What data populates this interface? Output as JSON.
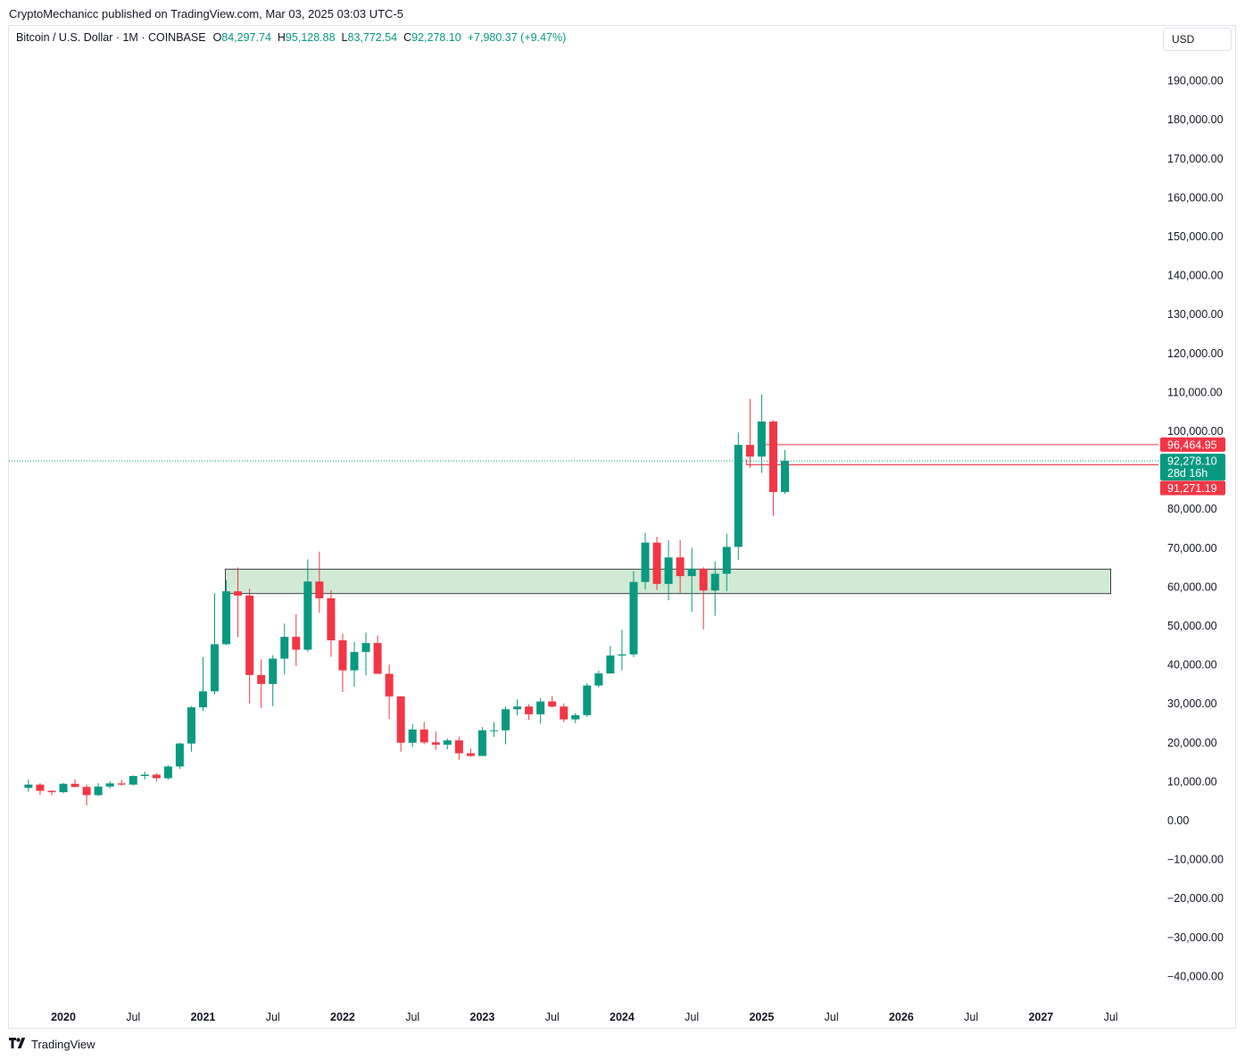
{
  "publisher_line": "CryptoMechanicc published on TradingView.com, Mar 03, 2025 03:03 UTC-5",
  "brand": {
    "logo_icon": "tradingview-logo-icon",
    "name": "TradingView"
  },
  "legend": {
    "symbol": "Bitcoin / U.S. Dollar · 1M · COINBASE",
    "open_key": "O",
    "open": "84,297.74",
    "high_key": "H",
    "high": "95,128.88",
    "low_key": "L",
    "low": "83,772.54",
    "close_key": "C",
    "close": "92,278.10",
    "change": "+7,980.37 (+9.47%)"
  },
  "currency": "USD",
  "colors": {
    "up": "#089981",
    "down": "#f23645",
    "zone_fill": "#d1ead3",
    "grid_text": "#131722"
  },
  "chart_data": {
    "type": "candlestick",
    "interval": "1M",
    "y_axis": {
      "min": -40000,
      "max": 190000,
      "step": 10000,
      "ticks": [
        "190,000.00",
        "180,000.00",
        "170,000.00",
        "160,000.00",
        "150,000.00",
        "140,000.00",
        "130,000.00",
        "120,000.00",
        "110,000.00",
        "100,000.00",
        "80,000.00",
        "70,000.00",
        "60,000.00",
        "50,000.00",
        "40,000.00",
        "30,000.00",
        "20,000.00",
        "10,000.00",
        "0.00",
        "−10,000.00",
        "−20,000.00",
        "−30,000.00",
        "−40,000.00"
      ],
      "tick_values": [
        190000,
        180000,
        170000,
        160000,
        150000,
        140000,
        130000,
        120000,
        110000,
        100000,
        80000,
        70000,
        60000,
        50000,
        40000,
        30000,
        20000,
        10000,
        0,
        -10000,
        -20000,
        -30000,
        -40000
      ]
    },
    "x_axis": {
      "labels": [
        {
          "label": "2020",
          "month": "2020-01",
          "bold": true
        },
        {
          "label": "Jul",
          "month": "2020-07",
          "bold": false
        },
        {
          "label": "2021",
          "month": "2021-01",
          "bold": true
        },
        {
          "label": "Jul",
          "month": "2021-07",
          "bold": false
        },
        {
          "label": "2022",
          "month": "2022-01",
          "bold": true
        },
        {
          "label": "Jul",
          "month": "2022-07",
          "bold": false
        },
        {
          "label": "2023",
          "month": "2023-01",
          "bold": true
        },
        {
          "label": "Jul",
          "month": "2023-07",
          "bold": false
        },
        {
          "label": "2024",
          "month": "2024-01",
          "bold": true
        },
        {
          "label": "Jul",
          "month": "2024-07",
          "bold": false
        },
        {
          "label": "2025",
          "month": "2025-01",
          "bold": true
        },
        {
          "label": "Jul",
          "month": "2025-07",
          "bold": false
        },
        {
          "label": "2026",
          "month": "2026-01",
          "bold": true
        },
        {
          "label": "Jul",
          "month": "2026-07",
          "bold": false
        },
        {
          "label": "2027",
          "month": "2027-01",
          "bold": true
        },
        {
          "label": "Jul",
          "month": "2027-07",
          "bold": false
        }
      ]
    },
    "candles": [
      {
        "t": "2019-10",
        "o": 8300,
        "h": 10400,
        "l": 7300,
        "c": 9150
      },
      {
        "t": "2019-11",
        "o": 9150,
        "h": 9500,
        "l": 6500,
        "c": 7550
      },
      {
        "t": "2019-12",
        "o": 7550,
        "h": 7700,
        "l": 6400,
        "c": 7200
      },
      {
        "t": "2020-01",
        "o": 7200,
        "h": 9600,
        "l": 6900,
        "c": 9350
      },
      {
        "t": "2020-02",
        "o": 9350,
        "h": 10500,
        "l": 8500,
        "c": 8550
      },
      {
        "t": "2020-03",
        "o": 8550,
        "h": 9200,
        "l": 3800,
        "c": 6450
      },
      {
        "t": "2020-04",
        "o": 6450,
        "h": 9500,
        "l": 6200,
        "c": 8650
      },
      {
        "t": "2020-05",
        "o": 8650,
        "h": 10100,
        "l": 8100,
        "c": 9450
      },
      {
        "t": "2020-06",
        "o": 9450,
        "h": 10400,
        "l": 8900,
        "c": 9150
      },
      {
        "t": "2020-07",
        "o": 9150,
        "h": 11500,
        "l": 8900,
        "c": 11350
      },
      {
        "t": "2020-08",
        "o": 11350,
        "h": 12500,
        "l": 10500,
        "c": 11700
      },
      {
        "t": "2020-09",
        "o": 11700,
        "h": 12100,
        "l": 9900,
        "c": 10800
      },
      {
        "t": "2020-10",
        "o": 10800,
        "h": 14100,
        "l": 10400,
        "c": 13800
      },
      {
        "t": "2020-11",
        "o": 13800,
        "h": 19900,
        "l": 13200,
        "c": 19700
      },
      {
        "t": "2020-12",
        "o": 19700,
        "h": 29300,
        "l": 17600,
        "c": 29000
      },
      {
        "t": "2021-01",
        "o": 29000,
        "h": 41900,
        "l": 28100,
        "c": 33100
      },
      {
        "t": "2021-02",
        "o": 33100,
        "h": 58300,
        "l": 32300,
        "c": 45200
      },
      {
        "t": "2021-03",
        "o": 45200,
        "h": 61700,
        "l": 45000,
        "c": 58800
      },
      {
        "t": "2021-04",
        "o": 58800,
        "h": 64900,
        "l": 47000,
        "c": 57700
      },
      {
        "t": "2021-05",
        "o": 57700,
        "h": 59500,
        "l": 30000,
        "c": 37300
      },
      {
        "t": "2021-06",
        "o": 37300,
        "h": 41300,
        "l": 28800,
        "c": 35000
      },
      {
        "t": "2021-07",
        "o": 35000,
        "h": 42400,
        "l": 29300,
        "c": 41500
      },
      {
        "t": "2021-08",
        "o": 41500,
        "h": 50500,
        "l": 37400,
        "c": 47100
      },
      {
        "t": "2021-09",
        "o": 47100,
        "h": 52900,
        "l": 39600,
        "c": 43800
      },
      {
        "t": "2021-10",
        "o": 43800,
        "h": 67000,
        "l": 43300,
        "c": 61300
      },
      {
        "t": "2021-11",
        "o": 61300,
        "h": 69000,
        "l": 53300,
        "c": 57000
      },
      {
        "t": "2021-12",
        "o": 57000,
        "h": 59100,
        "l": 42000,
        "c": 46200
      },
      {
        "t": "2022-01",
        "o": 46200,
        "h": 47900,
        "l": 32900,
        "c": 38500
      },
      {
        "t": "2022-02",
        "o": 38500,
        "h": 45800,
        "l": 34300,
        "c": 43200
      },
      {
        "t": "2022-03",
        "o": 43200,
        "h": 48200,
        "l": 37200,
        "c": 45500
      },
      {
        "t": "2022-04",
        "o": 45500,
        "h": 47400,
        "l": 37700,
        "c": 37600
      },
      {
        "t": "2022-05",
        "o": 37600,
        "h": 40000,
        "l": 26000,
        "c": 31800
      },
      {
        "t": "2022-06",
        "o": 31800,
        "h": 31900,
        "l": 17600,
        "c": 19900
      },
      {
        "t": "2022-07",
        "o": 19900,
        "h": 24700,
        "l": 18800,
        "c": 23300
      },
      {
        "t": "2022-08",
        "o": 23300,
        "h": 25200,
        "l": 19500,
        "c": 20000
      },
      {
        "t": "2022-09",
        "o": 20000,
        "h": 22800,
        "l": 18100,
        "c": 19400
      },
      {
        "t": "2022-10",
        "o": 19400,
        "h": 21000,
        "l": 18200,
        "c": 20500
      },
      {
        "t": "2022-11",
        "o": 20500,
        "h": 21400,
        "l": 15500,
        "c": 17200
      },
      {
        "t": "2022-12",
        "o": 17200,
        "h": 18400,
        "l": 16300,
        "c": 16500
      },
      {
        "t": "2023-01",
        "o": 16500,
        "h": 23900,
        "l": 16500,
        "c": 23100
      },
      {
        "t": "2023-02",
        "o": 23100,
        "h": 25200,
        "l": 21400,
        "c": 23100
      },
      {
        "t": "2023-03",
        "o": 23100,
        "h": 29200,
        "l": 19500,
        "c": 28500
      },
      {
        "t": "2023-04",
        "o": 28500,
        "h": 31000,
        "l": 26900,
        "c": 29200
      },
      {
        "t": "2023-05",
        "o": 29200,
        "h": 29800,
        "l": 25800,
        "c": 27200
      },
      {
        "t": "2023-06",
        "o": 27200,
        "h": 31400,
        "l": 24800,
        "c": 30500
      },
      {
        "t": "2023-07",
        "o": 30500,
        "h": 31800,
        "l": 28900,
        "c": 29200
      },
      {
        "t": "2023-08",
        "o": 29200,
        "h": 30000,
        "l": 25200,
        "c": 25900
      },
      {
        "t": "2023-09",
        "o": 25900,
        "h": 27500,
        "l": 24900,
        "c": 27000
      },
      {
        "t": "2023-10",
        "o": 27000,
        "h": 35200,
        "l": 26500,
        "c": 34600
      },
      {
        "t": "2023-11",
        "o": 34600,
        "h": 38400,
        "l": 34100,
        "c": 37700
      },
      {
        "t": "2023-12",
        "o": 37700,
        "h": 44700,
        "l": 37600,
        "c": 42300
      },
      {
        "t": "2024-01",
        "o": 42300,
        "h": 48900,
        "l": 38500,
        "c": 42600
      },
      {
        "t": "2024-02",
        "o": 42600,
        "h": 64000,
        "l": 41900,
        "c": 61200
      },
      {
        "t": "2024-03",
        "o": 61200,
        "h": 73800,
        "l": 59300,
        "c": 71300
      },
      {
        "t": "2024-04",
        "o": 71300,
        "h": 72800,
        "l": 59100,
        "c": 60700
      },
      {
        "t": "2024-05",
        "o": 60700,
        "h": 71900,
        "l": 56500,
        "c": 67500
      },
      {
        "t": "2024-06",
        "o": 67500,
        "h": 72000,
        "l": 58400,
        "c": 62700
      },
      {
        "t": "2024-07",
        "o": 62700,
        "h": 70000,
        "l": 53500,
        "c": 64600
      },
      {
        "t": "2024-08",
        "o": 64600,
        "h": 65000,
        "l": 49000,
        "c": 59000
      },
      {
        "t": "2024-09",
        "o": 59000,
        "h": 66500,
        "l": 52500,
        "c": 63300
      },
      {
        "t": "2024-10",
        "o": 63300,
        "h": 73600,
        "l": 58900,
        "c": 70200
      },
      {
        "t": "2024-11",
        "o": 70200,
        "h": 99600,
        "l": 66800,
        "c": 96400
      },
      {
        "t": "2024-12",
        "o": 96400,
        "h": 108200,
        "l": 90500,
        "c": 93400
      },
      {
        "t": "2025-01",
        "o": 93400,
        "h": 109300,
        "l": 89200,
        "c": 102400
      },
      {
        "t": "2025-02",
        "o": 102400,
        "h": 102700,
        "l": 78200,
        "c": 84300
      },
      {
        "t": "2025-03",
        "o": 84300,
        "h": 95100,
        "l": 83800,
        "c": 92300
      }
    ],
    "zone": {
      "from": "2021-03",
      "to": "2027-07",
      "low": 58200,
      "high": 64500
    },
    "levels": [
      {
        "name": "upper-level",
        "value": 96465,
        "from": "2025-01",
        "label": "96,464.95",
        "color": "#f23645"
      },
      {
        "name": "lower-level",
        "value": 91271,
        "from": "2024-12",
        "label": "91,271.19",
        "color": "#f23645"
      }
    ],
    "last_price": {
      "value": 92278.1,
      "label": "92,278.10",
      "countdown": "28d 16h",
      "color": "#089981"
    }
  }
}
